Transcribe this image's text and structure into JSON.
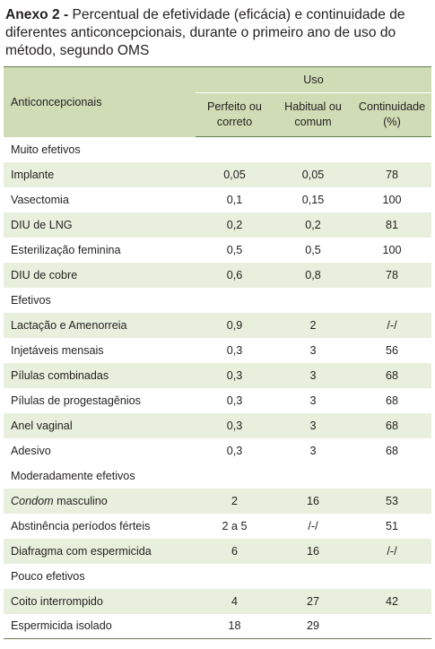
{
  "caption": {
    "lead": "Anexo 2 -",
    "text": "Percentual de efetividade (eficácia) e continuidade de diferentes anticoncepcionais, durante o primeiro ano de uso do método, segundo OMS"
  },
  "header": {
    "anticoncepcionais": "Anticoncepcionais",
    "uso": "Uso",
    "perfeito": "Perfeito ou correto",
    "habitual": "Habitual ou comum",
    "continuidade": "Continuidade (%)"
  },
  "rows": [
    {
      "type": "section",
      "label": "Muito efetivos"
    },
    {
      "label": "Implante",
      "perfeito": "0,05",
      "habitual": "0,05",
      "continuidade": "78"
    },
    {
      "label": "Vasectomia",
      "perfeito": "0,1",
      "habitual": "0,15",
      "continuidade": "100"
    },
    {
      "label": "DIU de LNG",
      "perfeito": "0,2",
      "habitual": "0,2",
      "continuidade": "81"
    },
    {
      "label": "Esterilização feminina",
      "perfeito": "0,5",
      "habitual": "0,5",
      "continuidade": "100"
    },
    {
      "label": "DIU de cobre",
      "perfeito": "0,6",
      "habitual": "0,8",
      "continuidade": "78"
    },
    {
      "type": "section",
      "label": "Efetivos"
    },
    {
      "label": "Lactação e Amenorreia",
      "perfeito": "0,9",
      "habitual": "2",
      "continuidade": "/-/"
    },
    {
      "label": "Injetáveis mensais",
      "perfeito": "0,3",
      "habitual": "3",
      "continuidade": "56"
    },
    {
      "label": "Pílulas combinadas",
      "perfeito": "0,3",
      "habitual": "3",
      "continuidade": "68"
    },
    {
      "label": "Pílulas de progestagênios",
      "perfeito": "0,3",
      "habitual": "3",
      "continuidade": "68"
    },
    {
      "label": "Anel vaginal",
      "perfeito": "0,3",
      "habitual": "3",
      "continuidade": "68"
    },
    {
      "label": "Adesivo",
      "perfeito": "0,3",
      "habitual": "3",
      "continuidade": "68"
    },
    {
      "type": "section",
      "label": "Moderadamente efetivos"
    },
    {
      "label_italic": "Condom",
      "label": "masculino",
      "perfeito": "2",
      "habitual": "16",
      "continuidade": "53"
    },
    {
      "label": "Abstinência períodos férteis",
      "perfeito": "2 a 5",
      "habitual": "/-/",
      "continuidade": "51"
    },
    {
      "label": "Diafragma com espermicida",
      "perfeito": "6",
      "habitual": "16",
      "continuidade": "/-/"
    },
    {
      "type": "section",
      "label": "Pouco efetivos"
    },
    {
      "label": "Coito interrompido",
      "perfeito": "4",
      "habitual": "27",
      "continuidade": "42"
    },
    {
      "label": "Espermicida isolado",
      "perfeito": "18",
      "habitual": "29",
      "continuidade": ""
    }
  ]
}
